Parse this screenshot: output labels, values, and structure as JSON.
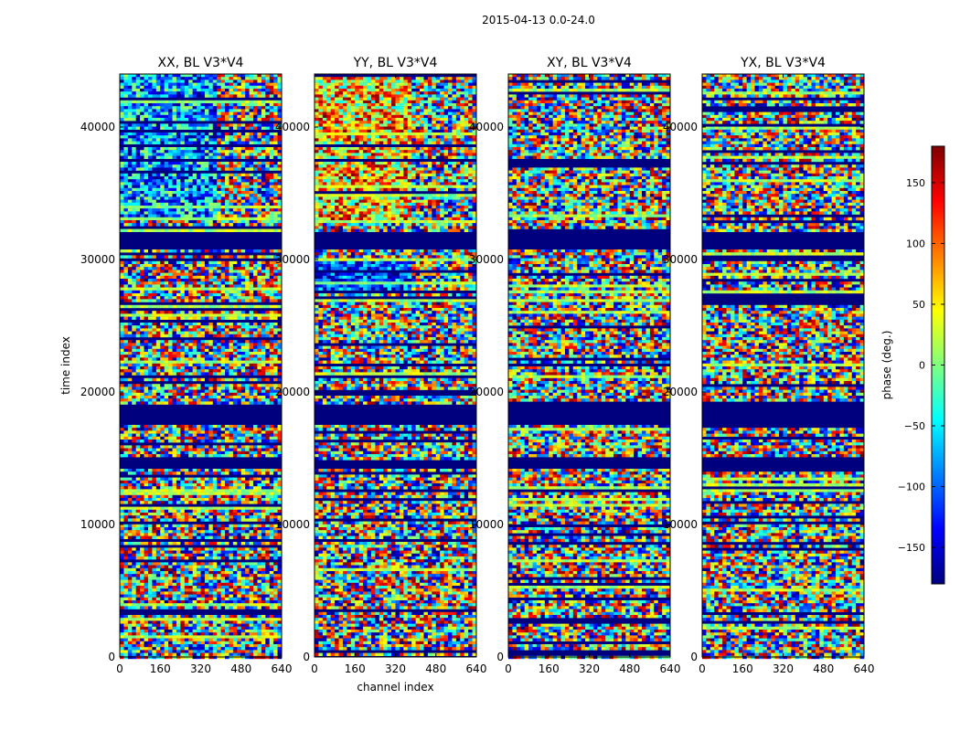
{
  "figure": {
    "suptitle": "2015-04-13 0.0-24.0",
    "colormap": [
      "#00007f",
      "#0000ff",
      "#007fff",
      "#00ffff",
      "#7fff7f",
      "#ffff00",
      "#ff7f00",
      "#ff0000",
      "#7f0000"
    ],
    "background_fill": "#00007f"
  },
  "chart_data": [
    {
      "type": "heatmap",
      "title": "XX, BL V3*V4",
      "xlabel": "",
      "ylabel": "time index",
      "xlim": [
        0,
        640
      ],
      "ylim": [
        0,
        44000
      ],
      "xticks": [
        0,
        160,
        320,
        480,
        640
      ],
      "yticks": [
        0,
        10000,
        20000,
        30000,
        40000
      ],
      "value_range": [
        -180,
        180
      ],
      "flagged_time_ranges": [
        [
          14300,
          15000
        ],
        [
          17700,
          19000
        ],
        [
          30800,
          32000
        ]
      ]
    },
    {
      "type": "heatmap",
      "title": "YY, BL V3*V4",
      "xlabel": "channel index",
      "ylabel": "",
      "xlim": [
        0,
        640
      ],
      "ylim": [
        0,
        44000
      ],
      "xticks": [
        0,
        160,
        320,
        480,
        640
      ],
      "yticks": [
        0,
        10000,
        20000,
        30000,
        40000
      ],
      "value_range": [
        -180,
        180
      ],
      "flagged_time_ranges": [
        [
          14300,
          14700
        ],
        [
          17700,
          19000
        ],
        [
          30800,
          32000
        ]
      ]
    },
    {
      "type": "heatmap",
      "title": "XY, BL V3*V4",
      "xlabel": "",
      "ylabel": "",
      "xlim": [
        0,
        640
      ],
      "ylim": [
        0,
        44000
      ],
      "xticks": [
        0,
        160,
        320,
        480,
        640
      ],
      "yticks": [
        0,
        10000,
        20000,
        30000,
        40000
      ],
      "value_range": [
        -180,
        180
      ],
      "flagged_time_ranges": [
        [
          14300,
          15000
        ],
        [
          17700,
          19000
        ],
        [
          30800,
          32000
        ]
      ]
    },
    {
      "type": "heatmap",
      "title": "YX, BL V3*V4",
      "xlabel": "",
      "ylabel": "",
      "xlim": [
        0,
        640
      ],
      "ylim": [
        0,
        44000
      ],
      "xticks": [
        0,
        160,
        320,
        480,
        640
      ],
      "yticks": [
        0,
        10000,
        20000,
        30000,
        40000
      ],
      "value_range": [
        -180,
        180
      ],
      "flagged_time_ranges": [
        [
          14300,
          15000
        ],
        [
          17700,
          19000
        ],
        [
          30800,
          32000
        ]
      ]
    }
  ],
  "colorbar": {
    "label": "phase (deg.)",
    "range": [
      -180,
      180
    ],
    "ticks": [
      -150,
      -100,
      -50,
      0,
      50,
      100,
      150
    ],
    "tick_labels": [
      "−150",
      "−100",
      "−50",
      "0",
      "50",
      "100",
      "150"
    ]
  }
}
